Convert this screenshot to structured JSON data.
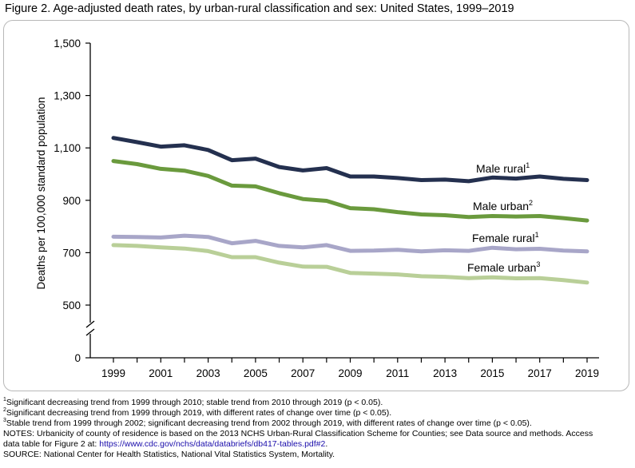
{
  "figure": {
    "title": "Figure 2. Age-adjusted death rates, by urban-rural classification and sex: United States, 1999–2019"
  },
  "chart_data": {
    "type": "line",
    "title": "Figure 2. Age-adjusted death rates, by urban-rural classification and sex: United States, 1999–2019",
    "ylabel": "Deaths per 100,000 standard population",
    "xlabel": "",
    "ylim": [
      500,
      1500
    ],
    "y_axis_break": true,
    "y_ticks": [
      "0",
      "500",
      "700",
      "900",
      "1,100",
      "1,300",
      "1,500"
    ],
    "x_ticks": [
      "1999",
      "2001",
      "2003",
      "2005",
      "2007",
      "2009",
      "2011",
      "2013",
      "2015",
      "2017",
      "2019"
    ],
    "x": [
      1999,
      2000,
      2001,
      2002,
      2003,
      2004,
      2005,
      2006,
      2007,
      2008,
      2009,
      2010,
      2011,
      2012,
      2013,
      2014,
      2015,
      2016,
      2017,
      2018,
      2019
    ],
    "grid": false,
    "legend": "inline labels",
    "series": [
      {
        "name": "Male rural",
        "sup": "1",
        "color": "#24304f",
        "values": [
          1138,
          1122,
          1105,
          1110,
          1092,
          1053,
          1059,
          1027,
          1014,
          1023,
          991,
          991,
          985,
          977,
          979,
          973,
          987,
          983,
          991,
          982,
          977
        ]
      },
      {
        "name": "Male urban",
        "sup": "2",
        "color": "#6a9a3d",
        "values": [
          1050,
          1038,
          1020,
          1013,
          993,
          956,
          953,
          927,
          905,
          898,
          870,
          866,
          855,
          846,
          843,
          836,
          840,
          838,
          840,
          832,
          823
        ]
      },
      {
        "name": "Female rural",
        "sup": "1",
        "color": "#a8a6c8",
        "values": [
          761,
          760,
          758,
          765,
          760,
          736,
          745,
          726,
          720,
          729,
          707,
          708,
          711,
          705,
          709,
          707,
          719,
          713,
          715,
          708,
          705
        ]
      },
      {
        "name": "Female urban",
        "sup": "3",
        "color": "#b9cf98",
        "values": [
          729,
          726,
          720,
          716,
          706,
          683,
          683,
          662,
          647,
          646,
          623,
          620,
          617,
          610,
          608,
          603,
          606,
          602,
          603,
          595,
          586
        ]
      }
    ]
  },
  "footnotes": [
    {
      "sup": "1",
      "text": "Significant decreasing trend from 1999 through 2010; stable trend from 2010 through 2019 (p < 0.05)."
    },
    {
      "sup": "2",
      "text": "Significant decreasing trend from 1999 through 2019, with different rates of change over time (p < 0.05)."
    },
    {
      "sup": "3",
      "text": "Stable trend from 1999 through 2002; significant decreasing trend from 2002 through 2019, with different rates of change over time (p < 0.05)."
    }
  ],
  "notes": {
    "line1": "NOTES: Urbanicity of county of residence is based on the 2013 NCHS Urban-Rural Classification Scheme for Counties; see Data source and methods. Access",
    "line2_prefix": "data table for Figure 2 at: ",
    "link": "https://www.cdc.gov/nchs/data/databriefs/db417-tables.pdf#2",
    "line2_suffix": ".",
    "source": "SOURCE: National Center for Health Statistics, National Vital Statistics System, Mortality."
  }
}
